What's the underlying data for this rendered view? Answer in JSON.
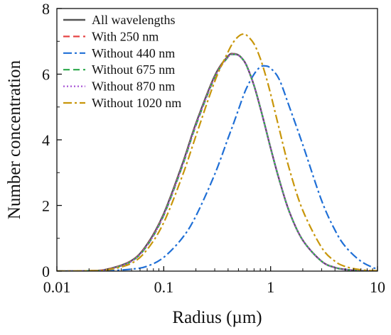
{
  "chart_data": {
    "type": "line",
    "title": "",
    "xlabel": "Radius (µm)",
    "ylabel": "Number concentration",
    "xscale": "log",
    "xlim": [
      0.01,
      10
    ],
    "ylim": [
      0,
      8
    ],
    "x_ticks": [
      0.01,
      0.1,
      1,
      10
    ],
    "x_tick_labels": [
      "0.01",
      "0.1",
      "1",
      "10"
    ],
    "y_ticks": [
      0,
      2,
      4,
      6,
      8
    ],
    "y_tick_labels": [
      "0",
      "2",
      "4",
      "6",
      "8"
    ],
    "grid": false,
    "legend_position": "top-left",
    "x": [
      0.01,
      0.02,
      0.03,
      0.05,
      0.07,
      0.1,
      0.15,
      0.2,
      0.3,
      0.4,
      0.45,
      0.5,
      0.55,
      0.6,
      0.7,
      0.8,
      0.9,
      1.0,
      1.2,
      1.5,
      2,
      3,
      4,
      5,
      7,
      10
    ],
    "series": [
      {
        "name": "All wavelengths",
        "color": "#555555",
        "dash": "solid",
        "values": [
          0.0,
          0.01,
          0.06,
          0.32,
          0.82,
          1.75,
          3.28,
          4.5,
          5.95,
          6.55,
          6.62,
          6.58,
          6.45,
          6.24,
          5.65,
          4.98,
          4.34,
          3.75,
          2.8,
          1.8,
          0.94,
          0.3,
          0.11,
          0.05,
          0.01,
          0.0
        ]
      },
      {
        "name": "With 250 nm",
        "color": "#e64545",
        "dash": "dashed",
        "values": [
          0.0,
          0.01,
          0.06,
          0.31,
          0.8,
          1.72,
          3.24,
          4.46,
          5.92,
          6.53,
          6.61,
          6.57,
          6.45,
          6.24,
          5.65,
          4.98,
          4.34,
          3.75,
          2.8,
          1.8,
          0.94,
          0.3,
          0.11,
          0.05,
          0.01,
          0.0
        ]
      },
      {
        "name": "Without 440 nm",
        "color": "#1f6fd6",
        "dash": "dashdot",
        "values": [
          0.0,
          0.0,
          0.01,
          0.06,
          0.15,
          0.42,
          1.02,
          1.68,
          2.95,
          4.05,
          4.5,
          4.92,
          5.3,
          5.6,
          6.0,
          6.22,
          6.25,
          6.18,
          5.85,
          5.0,
          3.85,
          2.15,
          1.25,
          0.75,
          0.3,
          0.05
        ]
      },
      {
        "name": "Without 675 nm",
        "color": "#2aa84a",
        "dash": "dashed",
        "values": [
          0.0,
          0.01,
          0.05,
          0.3,
          0.78,
          1.7,
          3.22,
          4.44,
          5.9,
          6.52,
          6.6,
          6.57,
          6.45,
          6.24,
          5.65,
          4.98,
          4.34,
          3.75,
          2.8,
          1.8,
          0.94,
          0.3,
          0.11,
          0.05,
          0.01,
          0.0
        ]
      },
      {
        "name": "Without 870 nm",
        "color": "#a855d6",
        "dash": "dotted",
        "values": [
          0.0,
          0.01,
          0.05,
          0.3,
          0.78,
          1.7,
          3.22,
          4.44,
          5.9,
          6.52,
          6.6,
          6.57,
          6.45,
          6.24,
          5.65,
          4.98,
          4.34,
          3.75,
          2.8,
          1.8,
          0.94,
          0.3,
          0.11,
          0.05,
          0.01,
          0.0
        ]
      },
      {
        "name": "Without 1020 nm",
        "color": "#c8960a",
        "dash": "dashdot",
        "values": [
          0.0,
          0.01,
          0.04,
          0.24,
          0.66,
          1.48,
          2.92,
          4.12,
          5.78,
          6.68,
          6.98,
          7.15,
          7.22,
          7.18,
          6.92,
          6.48,
          5.95,
          5.4,
          4.35,
          3.1,
          1.85,
          0.72,
          0.3,
          0.14,
          0.04,
          0.01
        ]
      }
    ]
  }
}
